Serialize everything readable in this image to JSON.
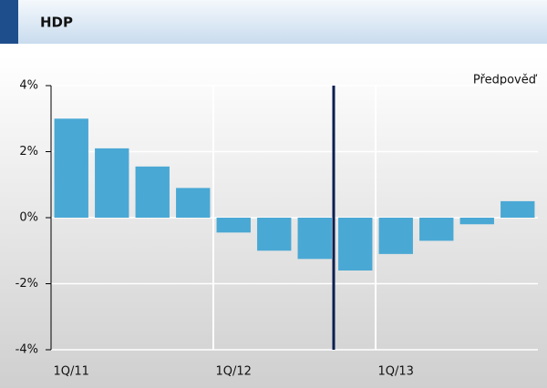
{
  "header": {
    "title": "HDP"
  },
  "chart_data": {
    "type": "bar",
    "annotation": "Předpověď",
    "categories": [
      "1Q/11",
      null,
      null,
      null,
      "1Q/12",
      null,
      null,
      null,
      "1Q/13",
      null,
      null,
      null
    ],
    "values": [
      3.0,
      2.1,
      1.55,
      0.9,
      -0.45,
      -1.0,
      -1.25,
      -1.6,
      -1.1,
      -0.7,
      -0.2,
      0.5
    ],
    "color": "#4aa8d4",
    "ylim": [
      -4,
      4
    ],
    "yticks": [
      {
        "value": -4,
        "label": "-4%"
      },
      {
        "value": -2,
        "label": "-2%"
      },
      {
        "value": 0,
        "label": "0%"
      },
      {
        "value": 2,
        "label": "2%"
      },
      {
        "value": 4,
        "label": "4%"
      }
    ],
    "grid": true
  }
}
